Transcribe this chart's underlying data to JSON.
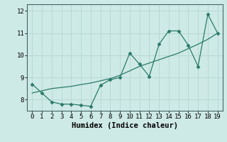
{
  "x_data": [
    0,
    1,
    2,
    3,
    4,
    5,
    6,
    7,
    8,
    9,
    10,
    11,
    12,
    13,
    14,
    15,
    16,
    17,
    18,
    19
  ],
  "y_humidex": [
    8.7,
    8.3,
    7.9,
    7.8,
    7.8,
    7.75,
    7.7,
    8.65,
    8.9,
    9.0,
    10.1,
    9.6,
    9.05,
    10.5,
    11.1,
    11.1,
    10.45,
    9.5,
    11.85,
    11.0
  ],
  "y_trend": [
    8.3,
    8.4,
    8.5,
    8.55,
    8.6,
    8.68,
    8.75,
    8.85,
    8.95,
    9.1,
    9.3,
    9.5,
    9.65,
    9.8,
    9.95,
    10.1,
    10.3,
    10.5,
    10.72,
    11.0
  ],
  "line_color": "#2a7a6a",
  "background_color": "#ceeae6",
  "grid_color": "#b8d8d4",
  "xlabel": "Humidex (Indice chaleur)",
  "xlim": [
    -0.5,
    19.5
  ],
  "ylim": [
    7.5,
    12.3
  ],
  "yticks": [
    8,
    9,
    10,
    11,
    12
  ],
  "xticks": [
    0,
    1,
    2,
    3,
    4,
    5,
    6,
    7,
    8,
    9,
    10,
    11,
    12,
    13,
    14,
    15,
    16,
    17,
    18,
    19
  ],
  "xlabel_fontsize": 7.5,
  "tick_fontsize": 6.5,
  "markersize": 2.5
}
